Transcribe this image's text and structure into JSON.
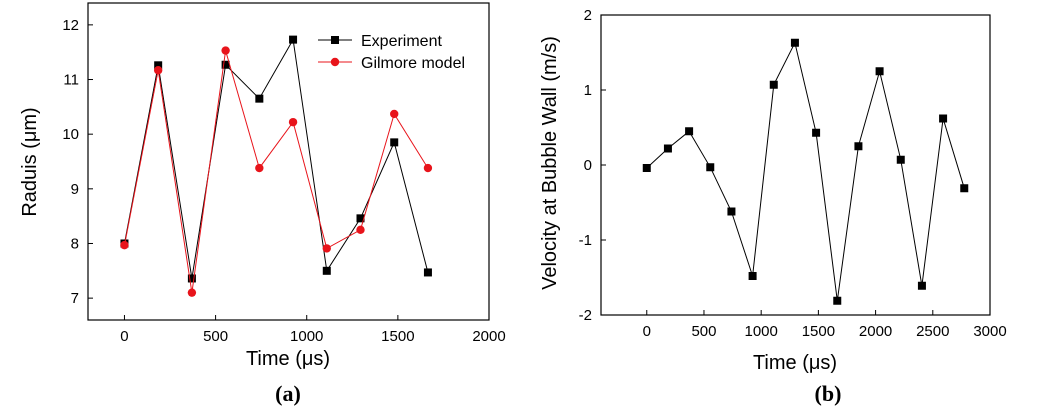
{
  "colors": {
    "experiment": "#000000",
    "gilmore": "#e8141b",
    "axis": "#000000"
  },
  "chart_data": [
    {
      "type": "line",
      "panel_label": "(a)",
      "xlabel": "Time (μs)",
      "ylabel": "Raduis (μm)",
      "xlim": [
        -200,
        2000
      ],
      "ylim": [
        6.6,
        12.4
      ],
      "xticks": [
        0,
        500,
        1000,
        1500,
        2000
      ],
      "yticks": [
        7,
        8,
        9,
        10,
        11,
        12
      ],
      "legend_position": "top-right",
      "series": [
        {
          "name": "Experiment",
          "marker": "square",
          "color": "#000000",
          "x": [
            0,
            185,
            370,
            555,
            740,
            925,
            1110,
            1295,
            1480,
            1665
          ],
          "y": [
            8.0,
            11.26,
            7.36,
            11.27,
            10.65,
            11.73,
            7.5,
            8.46,
            9.85,
            7.47
          ]
        },
        {
          "name": "Gilmore model",
          "marker": "circle",
          "color": "#e8141b",
          "x": [
            0,
            185,
            370,
            555,
            740,
            925,
            1110,
            1295,
            1480,
            1665
          ],
          "y": [
            7.97,
            11.17,
            7.1,
            11.53,
            9.38,
            10.22,
            7.91,
            8.25,
            10.37,
            9.38
          ]
        }
      ]
    },
    {
      "type": "line",
      "panel_label": "(b)",
      "xlabel": "Time (μs)",
      "ylabel": "Velocity at Bubble Wall (m/s)",
      "xlim": [
        -400,
        3000
      ],
      "ylim": [
        -2,
        2
      ],
      "xticks": [
        0,
        500,
        1000,
        1500,
        2000,
        2500,
        3000
      ],
      "yticks": [
        -2,
        -1,
        0,
        1,
        2
      ],
      "series": [
        {
          "marker": "square",
          "color": "#000000",
          "x": [
            0,
            185,
            370,
            555,
            740,
            925,
            1110,
            1295,
            1480,
            1665,
            1850,
            2035,
            2220,
            2405,
            2590,
            2775
          ],
          "y": [
            -0.04,
            0.22,
            0.45,
            -0.03,
            -0.62,
            -1.48,
            1.07,
            1.63,
            0.43,
            -1.81,
            0.25,
            1.25,
            0.07,
            -1.61,
            0.62,
            -0.31
          ]
        }
      ]
    }
  ]
}
